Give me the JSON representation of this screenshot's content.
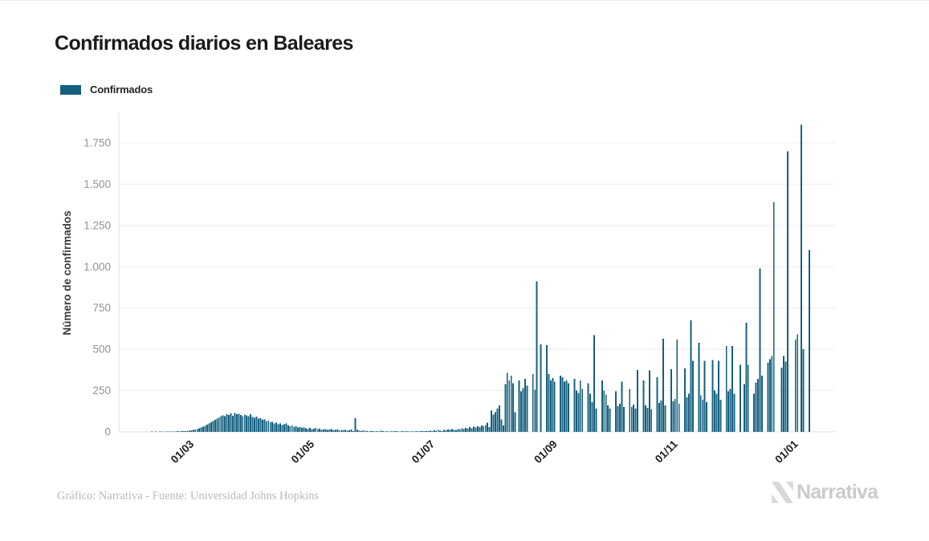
{
  "page": {
    "title": "Confirmados diarios en Baleares",
    "credit": "Gráfico: Narrativa - Fuente: Universidad Johns Hopkins",
    "brand": "Narrativa"
  },
  "legend": {
    "label": "Confirmados",
    "color": "#15607f"
  },
  "chart_data": {
    "type": "bar",
    "title": "Confirmados diarios en Baleares",
    "series_name": "Confirmados",
    "xlabel": "",
    "ylabel": "Número de confirmados",
    "bar_color": "#15607f",
    "background_color": "#ffffff",
    "grid": "horizontal",
    "legend_position": "top-left",
    "ylim": [
      0,
      1900
    ],
    "yticks": [
      0,
      250,
      500,
      750,
      1000,
      1250,
      1500,
      1750
    ],
    "ytick_labels": [
      "0",
      "250",
      "500",
      "750",
      "1.000",
      "1.250",
      "1.500",
      "1.750"
    ],
    "x_frequency": "daily",
    "x_range": [
      "2020-02-01",
      "2021-01-11"
    ],
    "xticks": [
      {
        "label": "01/03",
        "index": 29
      },
      {
        "label": "01/05",
        "index": 90
      },
      {
        "label": "01/07",
        "index": 151
      },
      {
        "label": "01/09",
        "index": 213
      },
      {
        "label": "01/11",
        "index": 274
      },
      {
        "label": "01/01",
        "index": 335
      }
    ],
    "values": [
      0,
      0,
      0,
      0,
      0,
      0,
      0,
      0,
      0,
      0,
      1,
      1,
      2,
      1,
      2,
      1,
      2,
      2,
      1,
      2,
      3,
      2,
      3,
      2,
      3,
      4,
      3,
      4,
      5,
      4,
      6,
      7,
      9,
      12,
      15,
      18,
      22,
      26,
      31,
      37,
      43,
      50,
      58,
      65,
      72,
      80,
      87,
      94,
      100,
      96,
      108,
      103,
      112,
      98,
      115,
      107,
      110,
      102,
      96,
      105,
      100,
      94,
      108,
      90,
      85,
      92,
      80,
      83,
      72,
      76,
      64,
      68,
      58,
      61,
      52,
      55,
      47,
      50,
      42,
      45,
      52,
      38,
      35,
      40,
      30,
      33,
      27,
      29,
      24,
      26,
      22,
      18,
      24,
      15,
      19,
      25,
      16,
      20,
      12,
      15,
      18,
      11,
      14,
      17,
      9,
      12,
      15,
      8,
      13,
      10,
      12,
      7,
      9,
      14,
      6,
      82,
      11,
      8,
      6,
      9,
      7,
      5,
      3,
      6,
      4,
      2,
      5,
      3,
      7,
      4,
      2,
      6,
      3,
      5,
      2,
      4,
      6,
      3,
      2,
      5,
      3,
      4,
      2,
      3,
      5,
      2,
      4,
      3,
      6,
      4,
      5,
      6,
      4,
      8,
      5,
      9,
      7,
      11,
      8,
      6,
      12,
      9,
      14,
      11,
      16,
      13,
      10,
      18,
      15,
      21,
      17,
      24,
      20,
      28,
      23,
      31,
      26,
      35,
      30,
      38,
      33,
      41,
      55,
      28,
      130,
      105,
      118,
      142,
      160,
      75,
      40,
      290,
      358,
      312,
      340,
      295,
      120,
      0,
      310,
      245,
      265,
      320,
      280,
      0,
      0,
      350,
      255,
      912,
      0,
      530,
      0,
      0,
      525,
      350,
      310,
      325,
      305,
      0,
      0,
      340,
      330,
      305,
      310,
      295,
      0,
      0,
      320,
      250,
      235,
      310,
      260,
      0,
      0,
      295,
      230,
      180,
      585,
      140,
      0,
      0,
      310,
      250,
      225,
      160,
      140,
      0,
      0,
      245,
      155,
      170,
      305,
      150,
      0,
      0,
      260,
      150,
      165,
      140,
      375,
      0,
      0,
      310,
      160,
      145,
      372,
      135,
      0,
      0,
      330,
      175,
      190,
      565,
      160,
      0,
      0,
      380,
      185,
      200,
      560,
      170,
      0,
      0,
      385,
      210,
      230,
      675,
      430,
      0,
      0,
      540,
      220,
      195,
      430,
      180,
      0,
      0,
      435,
      250,
      230,
      430,
      195,
      0,
      0,
      520,
      245,
      260,
      520,
      230,
      0,
      0,
      405,
      0,
      290,
      660,
      405,
      0,
      0,
      230,
      300,
      320,
      990,
      340,
      0,
      0,
      420,
      440,
      460,
      1390,
      0,
      0,
      0,
      390,
      460,
      425,
      1700,
      0,
      0,
      0,
      560,
      590,
      0,
      1860,
      500,
      0,
      0,
      1100
    ]
  }
}
